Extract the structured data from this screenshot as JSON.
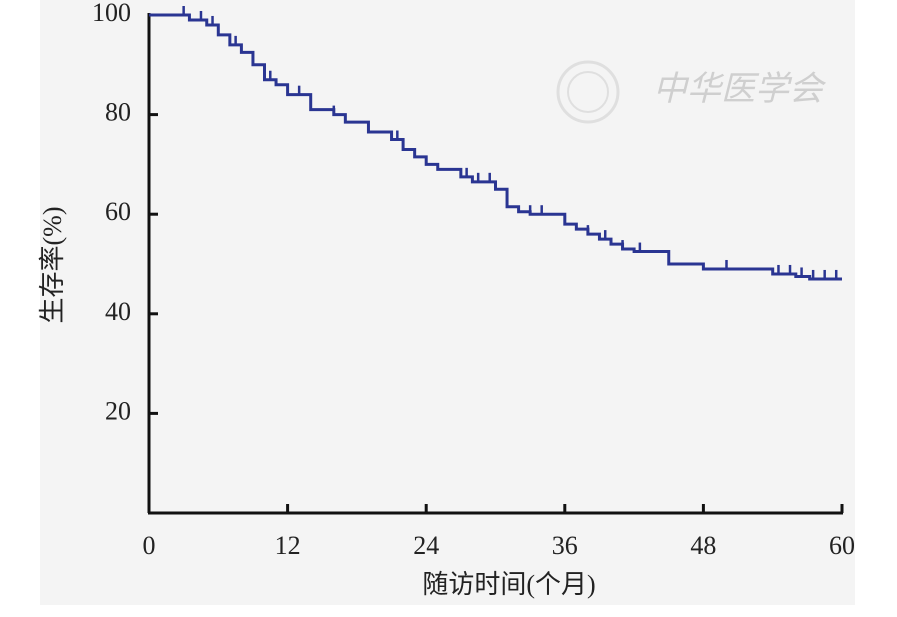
{
  "chart_data": {
    "type": "step",
    "y_label": "生存率(%)",
    "x_label": "随访时间(个月)",
    "watermark": "中华医学会",
    "color": "#2a3592",
    "x": [
      0,
      3.5,
      5,
      6,
      7,
      8,
      9,
      10,
      11,
      12,
      14,
      16,
      17,
      19,
      21,
      22,
      23,
      24,
      25,
      27,
      28,
      30,
      31,
      32,
      33,
      36,
      37,
      38,
      39,
      40,
      41,
      42,
      45,
      48,
      54,
      56,
      57.2
    ],
    "values": [
      100,
      99,
      98,
      96,
      94,
      92.5,
      90,
      87,
      86,
      84,
      81,
      80,
      78.5,
      76.5,
      75,
      73,
      71.5,
      70,
      69,
      67.5,
      66.5,
      65,
      61.5,
      60.5,
      60,
      58,
      57,
      56,
      55,
      54,
      53,
      52.5,
      50,
      49,
      48,
      47.5,
      47
    ],
    "censored": {
      "x": [
        3,
        4.5,
        5.5,
        7.5,
        10.5,
        13,
        16,
        21.5,
        27.5,
        28.5,
        29.5,
        33,
        34,
        36,
        38,
        39.5,
        41,
        42.5,
        50,
        54.5,
        55.5,
        56.5,
        57.5,
        58.5,
        59.5
      ],
      "values": [
        100,
        99,
        98,
        94,
        87,
        84,
        80,
        75,
        67.5,
        66.5,
        66.5,
        60,
        60,
        58,
        56,
        55,
        53,
        52.5,
        49,
        48,
        48,
        47.5,
        47,
        47,
        47
      ]
    },
    "xlim": [
      0,
      60
    ],
    "xticks": [
      0,
      12,
      24,
      36,
      48,
      60
    ],
    "ylim": [
      0,
      100
    ],
    "yticks": [
      20,
      40,
      60,
      80,
      100
    ]
  }
}
